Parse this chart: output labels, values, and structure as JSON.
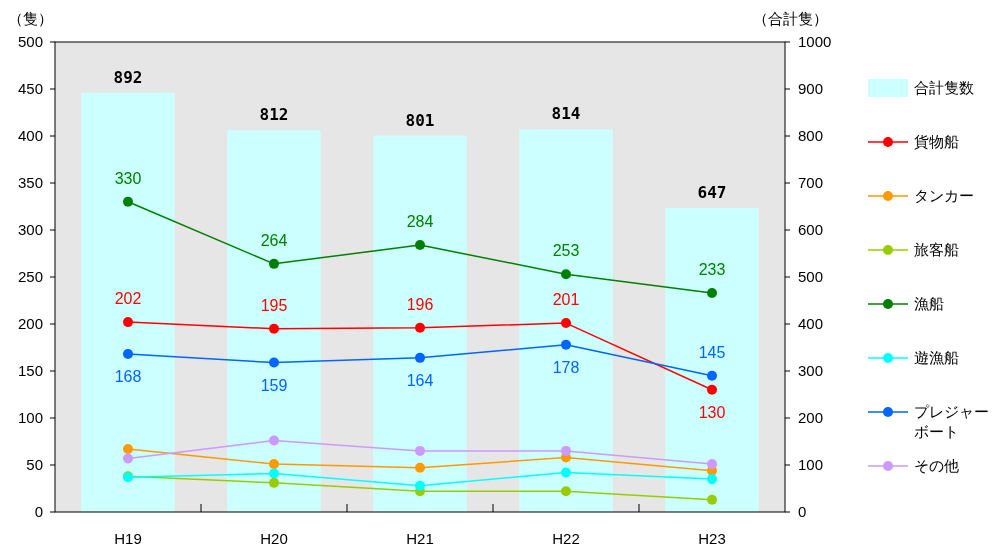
{
  "chart_data": {
    "type": "line",
    "ylabel": "（隻）",
    "y2label": "（合計隻）",
    "categories": [
      "H19",
      "H20",
      "H21",
      "H22",
      "H23"
    ],
    "ylim": [
      0,
      500
    ],
    "yticks": [
      0,
      50,
      100,
      150,
      200,
      250,
      300,
      350,
      400,
      450,
      500
    ],
    "y2lim": [
      0,
      1000
    ],
    "y2ticks": [
      0,
      100,
      200,
      300,
      400,
      500,
      600,
      700,
      800,
      900,
      1000
    ],
    "legend": "right",
    "marker": "circle",
    "series": [
      {
        "name": "合計隻数",
        "type": "bar",
        "axis": "y2",
        "color": "#ccffff",
        "values": [
          892,
          812,
          801,
          814,
          647
        ],
        "data_labels": true
      },
      {
        "name": "貨物船",
        "color": "#ff0000",
        "values": [
          202,
          195,
          196,
          201,
          130
        ],
        "data_labels": true
      },
      {
        "name": "タンカー",
        "color": "#ff9900",
        "values": [
          67,
          51,
          47,
          58,
          44
        ]
      },
      {
        "name": "旅客船",
        "color": "#99cc00",
        "values": [
          38,
          31,
          22,
          22,
          13
        ]
      },
      {
        "name": "漁船",
        "color": "#008000",
        "values": [
          330,
          264,
          284,
          253,
          233
        ],
        "data_labels": true
      },
      {
        "name": "遊漁船",
        "color": "#00ffff",
        "values": [
          37,
          41,
          28,
          42,
          35
        ]
      },
      {
        "name": "プレジャーボート",
        "color": "#0066ff",
        "values": [
          168,
          159,
          164,
          178,
          145
        ],
        "data_labels": true
      },
      {
        "name": "その他",
        "color": "#cc99ff",
        "values": [
          57,
          76,
          65,
          65,
          51
        ]
      }
    ]
  }
}
